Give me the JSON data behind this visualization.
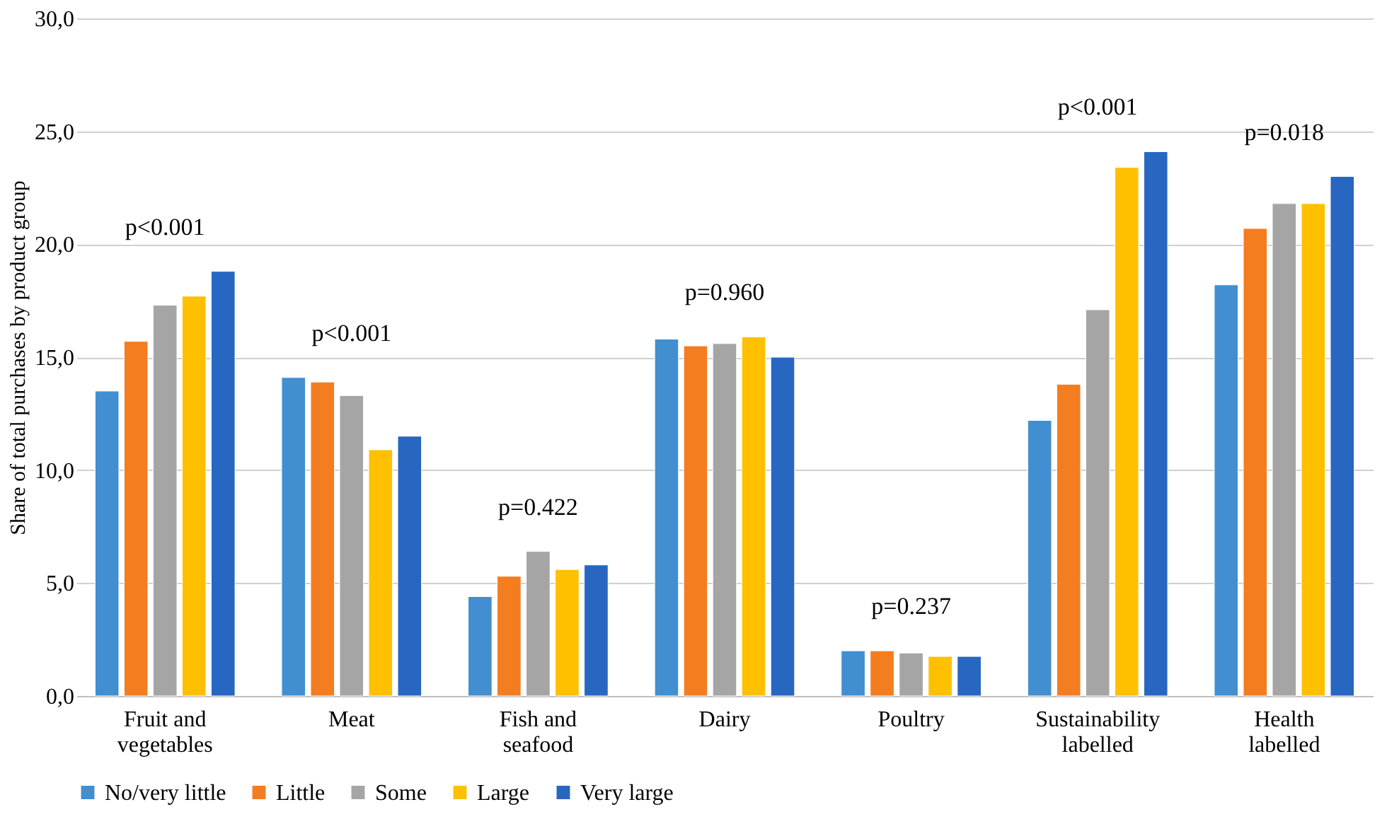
{
  "chart_data": {
    "type": "bar",
    "ylabel": "Share of total purchases by product group",
    "categories": [
      "Fruit and\nvegetables",
      "Meat",
      "Fish and\nseafood",
      "Dairy",
      "Poultry",
      "Sustainability\nlabelled",
      "Health\nlabelled"
    ],
    "series": [
      {
        "name": "No/very little",
        "color": "#418fd0",
        "values": [
          13.5,
          14.1,
          4.4,
          15.8,
          2.0,
          12.2,
          18.2
        ]
      },
      {
        "name": "Little",
        "color": "#f47d20",
        "values": [
          15.7,
          13.9,
          5.3,
          15.5,
          2.0,
          13.8,
          20.7
        ]
      },
      {
        "name": "Some",
        "color": "#a5a5a5",
        "values": [
          17.3,
          13.3,
          6.4,
          15.6,
          1.9,
          17.1,
          21.8
        ]
      },
      {
        "name": "Large",
        "color": "#ffc000",
        "values": [
          17.7,
          10.9,
          5.6,
          15.9,
          1.75,
          23.4,
          21.8
        ]
      },
      {
        "name": "Very large",
        "color": "#2767c1",
        "values": [
          18.8,
          11.5,
          5.8,
          15.0,
          1.75,
          24.1,
          23.0
        ]
      }
    ],
    "annotations": [
      "p<0.001",
      "p<0.001",
      "p=0.422",
      "p=0.960",
      "p=0.237",
      "p<0.001",
      "p=0.018"
    ],
    "ylim": [
      0,
      30
    ],
    "yticks": [
      {
        "value": 0,
        "label": "0,0"
      },
      {
        "value": 5,
        "label": "5,0"
      },
      {
        "value": 10,
        "label": "10,0"
      },
      {
        "value": 15,
        "label": "15,0"
      },
      {
        "value": 20,
        "label": "20,0"
      },
      {
        "value": 25,
        "label": "25,0"
      },
      {
        "value": 30,
        "label": "30,0"
      }
    ],
    "grid": "y",
    "legend": "bottom"
  }
}
